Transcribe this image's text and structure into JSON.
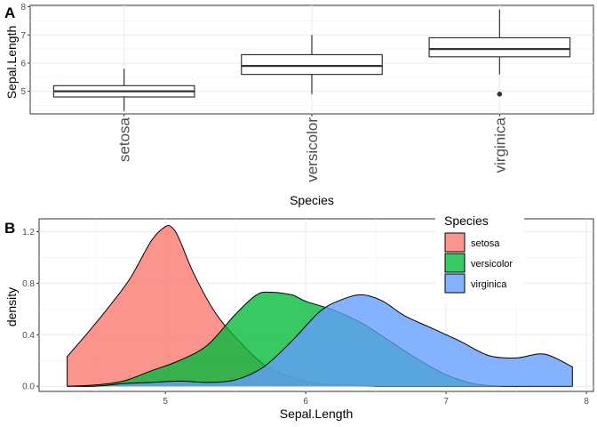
{
  "chart_data": [
    {
      "panel_tag": "A",
      "type": "box",
      "xlabel": "Species",
      "ylabel": "Sepal.Length",
      "categories": [
        "setosa",
        "versicolor",
        "virginica"
      ],
      "ylim": [
        4.2,
        8.05
      ],
      "yticks": [
        "5",
        "6",
        "7",
        "8"
      ],
      "grid": true,
      "boxes": [
        {
          "category": "setosa",
          "lower_whisker": 4.3,
          "q1": 4.8,
          "median": 5.0,
          "q3": 5.2,
          "upper_whisker": 5.8,
          "outliers": []
        },
        {
          "category": "versicolor",
          "lower_whisker": 4.9,
          "q1": 5.6,
          "median": 5.9,
          "q3": 6.3,
          "upper_whisker": 7.0,
          "outliers": []
        },
        {
          "category": "virginica",
          "lower_whisker": 5.6,
          "q1": 6.225,
          "median": 6.5,
          "q3": 6.9,
          "upper_whisker": 7.9,
          "outliers": [
            4.9
          ]
        }
      ]
    },
    {
      "panel_tag": "B",
      "type": "area",
      "xlabel": "Sepal.Length",
      "ylabel": "density",
      "xlim": [
        4.1,
        8.05
      ],
      "ylim": [
        -0.04,
        1.3
      ],
      "xticks": [
        "5",
        "6",
        "7",
        "8"
      ],
      "yticks": [
        "0.0",
        "0.4",
        "0.8",
        "1.2"
      ],
      "grid": true,
      "legend": {
        "title": "Species",
        "position": "top-right",
        "entries": [
          "setosa",
          "versicolor",
          "virginica"
        ]
      },
      "series": [
        {
          "name": "setosa",
          "color": "#F8766D",
          "x": [
            4.3,
            4.45,
            4.6,
            4.75,
            4.9,
            5.0,
            5.05,
            5.1,
            5.2,
            5.35,
            5.5,
            5.7,
            5.9,
            6.1,
            6.3,
            6.5,
            6.7,
            6.9,
            7.1,
            7.3,
            7.5,
            7.7,
            7.9
          ],
          "y": [
            0.23,
            0.42,
            0.62,
            0.84,
            1.13,
            1.24,
            1.23,
            1.14,
            0.88,
            0.58,
            0.38,
            0.17,
            0.07,
            0.02,
            0.01,
            0.0,
            0.0,
            0.0,
            0.0,
            0.0,
            0.0,
            0.0,
            0.0
          ]
        },
        {
          "name": "versicolor",
          "color": "#00BA38",
          "x": [
            4.3,
            4.5,
            4.7,
            4.9,
            5.1,
            5.3,
            5.5,
            5.65,
            5.75,
            5.9,
            6.0,
            6.2,
            6.4,
            6.6,
            6.8,
            7.0,
            7.2,
            7.4,
            7.6,
            7.9
          ],
          "y": [
            0.0,
            0.01,
            0.04,
            0.12,
            0.2,
            0.32,
            0.56,
            0.71,
            0.73,
            0.71,
            0.66,
            0.59,
            0.49,
            0.35,
            0.21,
            0.09,
            0.02,
            0.0,
            0.0,
            0.0
          ]
        },
        {
          "name": "virginica",
          "color": "#619CFF",
          "x": [
            4.3,
            4.5,
            4.7,
            4.9,
            5.1,
            5.3,
            5.5,
            5.7,
            5.9,
            6.1,
            6.25,
            6.4,
            6.55,
            6.7,
            6.9,
            7.1,
            7.3,
            7.5,
            7.7,
            7.9
          ],
          "y": [
            0.0,
            0.0,
            0.02,
            0.03,
            0.04,
            0.03,
            0.05,
            0.15,
            0.35,
            0.58,
            0.67,
            0.71,
            0.66,
            0.55,
            0.45,
            0.35,
            0.24,
            0.22,
            0.25,
            0.15
          ]
        }
      ]
    }
  ]
}
